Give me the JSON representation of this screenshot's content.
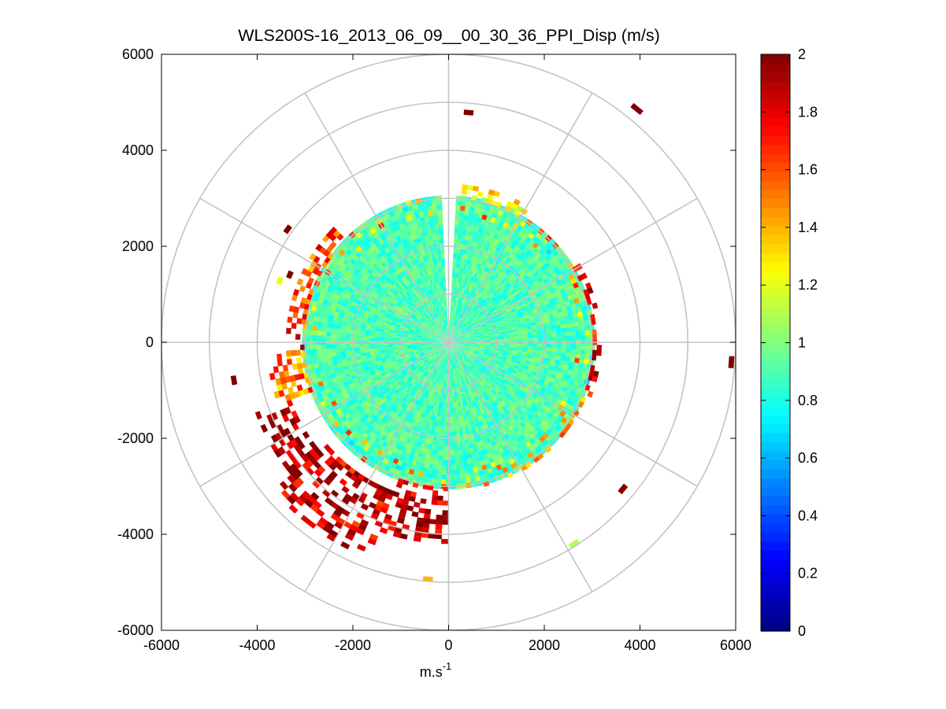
{
  "chart_data": {
    "type": "heatmap",
    "subtype": "polar-ppi-scan",
    "title": "WLS200S-16_2013_06_09__00_30_36_PPI_Disp (m/s)",
    "xlabel": "m.s",
    "xlabel_superscript": "-1",
    "ylabel": "",
    "xlim": [
      -6000,
      6000
    ],
    "ylim": [
      -6000,
      6000
    ],
    "x_ticks": [
      "-6000",
      "-4000",
      "-2000",
      "0",
      "2000",
      "4000",
      "6000"
    ],
    "y_ticks": [
      "6000",
      "4000",
      "2000",
      "0",
      "-2000",
      "-4000",
      "-6000"
    ],
    "polar_grid": {
      "ring_radii": [
        1000,
        2000,
        3000,
        4000,
        5000,
        6000
      ],
      "spoke_angles_deg": [
        0,
        30,
        60,
        90,
        120,
        150,
        180,
        210,
        240,
        270,
        300,
        330
      ]
    },
    "colorbar": {
      "min": 0,
      "max": 2,
      "colormap": "jet",
      "tick_labels": [
        "2",
        "1.8",
        "1.6",
        "1.4",
        "1.2",
        "1",
        "0.8",
        "0.6",
        "0.4",
        "0.2",
        "0"
      ],
      "tick_values": [
        2,
        1.8,
        1.6,
        1.4,
        1.2,
        1,
        0.8,
        0.6,
        0.4,
        0.2,
        0
      ]
    },
    "scan": {
      "dense_region_max_range": 3000,
      "dense_region_typical_value": 0.9,
      "gap_azimuth_deg": [
        -3,
        3
      ],
      "clusters": [
        {
          "az_deg": [
            180,
            200
          ],
          "range": [
            3000,
            4200
          ],
          "value": 1.9
        },
        {
          "az_deg": [
            200,
            230
          ],
          "range": [
            3300,
            4800
          ],
          "value": 1.85
        },
        {
          "az_deg": [
            230,
            250
          ],
          "range": [
            3500,
            4300
          ],
          "value": 1.95
        },
        {
          "az_deg": [
            250,
            265
          ],
          "range": [
            3000,
            3800
          ],
          "value": 1.5
        },
        {
          "az_deg": [
            265,
            285
          ],
          "range": [
            3000,
            3400
          ],
          "value": 1.7
        },
        {
          "az_deg": [
            285,
            315
          ],
          "range": [
            3000,
            3400
          ],
          "value": 1.6
        },
        {
          "az_deg": [
            5,
            30
          ],
          "range": [
            3000,
            3300
          ],
          "value": 1.25
        },
        {
          "az_deg": [
            55,
            110
          ],
          "range": [
            3000,
            3200
          ],
          "value": 1.8
        },
        {
          "az_deg": [
            110,
            165
          ],
          "range": [
            3000,
            3100
          ],
          "value": 1.5
        }
      ],
      "isolated_cells": [
        {
          "az_deg": 5,
          "range": 4750,
          "value": 2.0
        },
        {
          "az_deg": 39,
          "range": 6200,
          "value": 2.0
        },
        {
          "az_deg": 94,
          "range": 5870,
          "value": 2.0
        },
        {
          "az_deg": 130,
          "range": 4700,
          "value": 2.0
        },
        {
          "az_deg": 148,
          "range": 4900,
          "value": 1.1
        },
        {
          "az_deg": 185,
          "range": 4900,
          "value": 1.4
        },
        {
          "az_deg": 260,
          "range": 4500,
          "value": 2.0
        },
        {
          "az_deg": 305,
          "range": 4050,
          "value": 2.0
        },
        {
          "az_deg": 293,
          "range": 3550,
          "value": 2.0
        },
        {
          "az_deg": 290,
          "range": 3700,
          "value": 1.2
        }
      ]
    }
  }
}
